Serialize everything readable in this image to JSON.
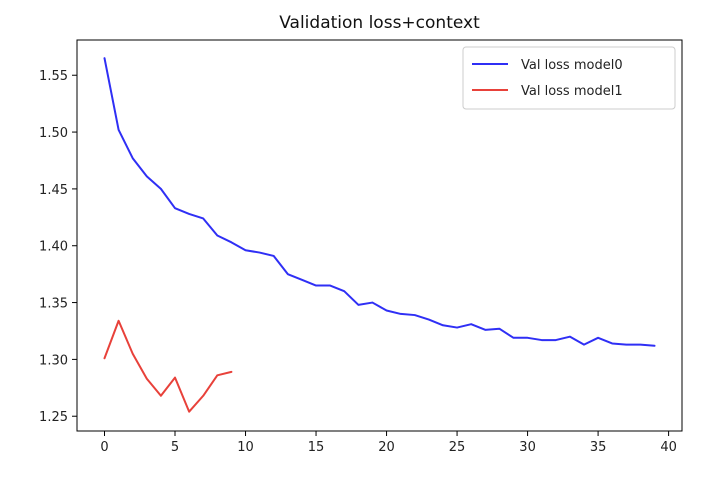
{
  "chart_data": {
    "type": "line",
    "title": "Validation loss+context",
    "xlabel": "",
    "ylabel": "",
    "xlim": [
      -1.95,
      40.95
    ],
    "ylim": [
      1.237,
      1.581
    ],
    "xticks": [
      0,
      5,
      10,
      15,
      20,
      25,
      30,
      35,
      40
    ],
    "yticks": [
      1.25,
      1.3,
      1.35,
      1.4,
      1.45,
      1.5,
      1.55
    ],
    "ytick_labels": [
      "1.25",
      "1.30",
      "1.35",
      "1.40",
      "1.45",
      "1.50",
      "1.55"
    ],
    "grid": false,
    "legend_position": "top-right",
    "series": [
      {
        "name": "Val loss model0",
        "color": "#2f2ff5",
        "x": [
          0,
          1,
          2,
          3,
          4,
          5,
          6,
          7,
          8,
          9,
          10,
          11,
          12,
          13,
          14,
          15,
          16,
          17,
          18,
          19,
          20,
          21,
          22,
          23,
          24,
          25,
          26,
          27,
          28,
          29,
          30,
          31,
          32,
          33,
          34,
          35,
          36,
          37,
          38,
          39
        ],
        "y": [
          1.565,
          1.502,
          1.477,
          1.461,
          1.45,
          1.433,
          1.428,
          1.424,
          1.409,
          1.403,
          1.396,
          1.394,
          1.391,
          1.375,
          1.37,
          1.365,
          1.365,
          1.36,
          1.348,
          1.35,
          1.343,
          1.34,
          1.339,
          1.335,
          1.33,
          1.328,
          1.331,
          1.326,
          1.327,
          1.319,
          1.319,
          1.317,
          1.317,
          1.32,
          1.313,
          1.319,
          1.314,
          1.313,
          1.313,
          1.312
        ]
      },
      {
        "name": "Val loss model1",
        "color": "#e8413a",
        "x": [
          0,
          1,
          2,
          3,
          4,
          5,
          6,
          7,
          8,
          9
        ],
        "y": [
          1.301,
          1.334,
          1.305,
          1.283,
          1.268,
          1.284,
          1.254,
          1.268,
          1.286,
          1.289
        ]
      }
    ]
  }
}
